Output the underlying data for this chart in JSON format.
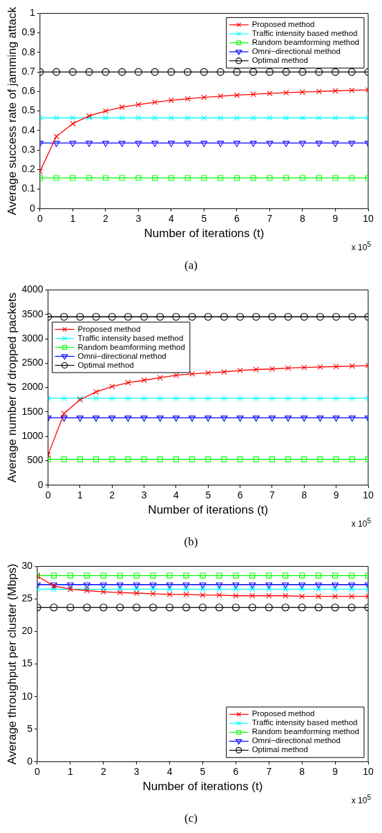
{
  "chart_data": [
    {
      "type": "line",
      "xlabel": "Number of iterations (t)",
      "ylabel": "Average success rate of jamming attack",
      "x": [
        0,
        0.5,
        1,
        1.5,
        2,
        2.5,
        3,
        3.5,
        4,
        4.5,
        5,
        5.5,
        6,
        6.5,
        7,
        7.5,
        8,
        8.5,
        9,
        9.5,
        10
      ],
      "xlim": [
        0,
        10
      ],
      "xticks": [
        0,
        1,
        2,
        3,
        4,
        5,
        6,
        7,
        8,
        9,
        10
      ],
      "ylim": [
        0,
        1
      ],
      "yticks": [
        0,
        0.1,
        0.2,
        0.3,
        0.4,
        0.5,
        0.6,
        0.7,
        0.8,
        0.9,
        1
      ],
      "grid": false,
      "legend": "top right",
      "annotations": [
        "x 10$^{5}$",
        "(a)"
      ],
      "series": [
        {
          "name": "Proposed method",
          "color": "#ff0000",
          "marker": "cross",
          "values": [
            0.19,
            0.37,
            0.435,
            0.475,
            0.5,
            0.52,
            0.533,
            0.545,
            0.555,
            0.563,
            0.57,
            0.576,
            0.581,
            0.586,
            0.59,
            0.594,
            0.597,
            0.6,
            0.603,
            0.606,
            0.608
          ]
        },
        {
          "name": "Traffic intensity based method",
          "color": "#00ffff",
          "marker": "cross",
          "values": [
            0.465,
            0.465,
            0.465,
            0.465,
            0.465,
            0.465,
            0.465,
            0.465,
            0.465,
            0.465,
            0.465,
            0.465,
            0.465,
            0.465,
            0.465,
            0.465,
            0.465,
            0.465,
            0.465,
            0.465,
            0.465
          ]
        },
        {
          "name": "Random beamforming method",
          "color": "#00ff00",
          "marker": "square",
          "values": [
            0.157,
            0.157,
            0.157,
            0.157,
            0.157,
            0.157,
            0.157,
            0.157,
            0.157,
            0.157,
            0.157,
            0.157,
            0.157,
            0.157,
            0.157,
            0.157,
            0.157,
            0.157,
            0.157,
            0.157,
            0.157
          ]
        },
        {
          "name": "Omni−directional method",
          "color": "#0000ff",
          "marker": "triangle",
          "values": [
            0.336,
            0.336,
            0.336,
            0.336,
            0.336,
            0.336,
            0.336,
            0.336,
            0.336,
            0.336,
            0.336,
            0.336,
            0.336,
            0.336,
            0.336,
            0.336,
            0.336,
            0.336,
            0.336,
            0.336,
            0.336
          ]
        },
        {
          "name": "Optimal method",
          "color": "#000000",
          "marker": "circle",
          "values": [
            0.7,
            0.7,
            0.7,
            0.7,
            0.7,
            0.7,
            0.7,
            0.7,
            0.7,
            0.7,
            0.7,
            0.7,
            0.7,
            0.7,
            0.7,
            0.7,
            0.7,
            0.7,
            0.7,
            0.7,
            0.7
          ]
        }
      ]
    },
    {
      "type": "line",
      "xlabel": "Number of iterations (t)",
      "ylabel": "Average number of dropped packets",
      "x": [
        0,
        0.5,
        1,
        1.5,
        2,
        2.5,
        3,
        3.5,
        4,
        4.5,
        5,
        5.5,
        6,
        6.5,
        7,
        7.5,
        8,
        8.5,
        9,
        9.5,
        10
      ],
      "xlim": [
        0,
        10
      ],
      "xticks": [
        0,
        1,
        2,
        3,
        4,
        5,
        6,
        7,
        8,
        9,
        10
      ],
      "ylim": [
        0,
        4000
      ],
      "yticks": [
        0,
        500,
        1000,
        1500,
        2000,
        2500,
        3000,
        3500,
        4000
      ],
      "grid": false,
      "legend": "top left",
      "annotations": [
        "x 10$^{5}$",
        "(b)"
      ],
      "series": [
        {
          "name": "Proposed method",
          "color": "#ff0000",
          "marker": "cross",
          "values": [
            620,
            1470,
            1750,
            1910,
            2020,
            2100,
            2150,
            2200,
            2250,
            2280,
            2300,
            2320,
            2350,
            2370,
            2380,
            2400,
            2410,
            2420,
            2430,
            2440,
            2450
          ]
        },
        {
          "name": "Traffic intensity based method",
          "color": "#00ffff",
          "marker": "cross",
          "values": [
            1780,
            1780,
            1780,
            1780,
            1780,
            1780,
            1780,
            1780,
            1780,
            1780,
            1780,
            1780,
            1780,
            1780,
            1780,
            1780,
            1780,
            1780,
            1780,
            1780,
            1780
          ]
        },
        {
          "name": "Random beamforming method",
          "color": "#00ff00",
          "marker": "square",
          "values": [
            530,
            530,
            530,
            530,
            530,
            530,
            530,
            530,
            530,
            530,
            530,
            530,
            530,
            530,
            530,
            530,
            530,
            530,
            530,
            530,
            530
          ]
        },
        {
          "name": "Omni−directional method",
          "color": "#0000ff",
          "marker": "triangle",
          "values": [
            1380,
            1380,
            1380,
            1380,
            1380,
            1380,
            1380,
            1380,
            1380,
            1380,
            1380,
            1380,
            1380,
            1380,
            1380,
            1380,
            1380,
            1380,
            1380,
            1380,
            1380
          ]
        },
        {
          "name": "Optimal method",
          "color": "#000000",
          "marker": "circle",
          "values": [
            3450,
            3450,
            3450,
            3450,
            3450,
            3450,
            3450,
            3450,
            3450,
            3450,
            3450,
            3450,
            3450,
            3450,
            3450,
            3450,
            3450,
            3450,
            3450,
            3450,
            3450
          ]
        }
      ]
    },
    {
      "type": "line",
      "xlabel": "Number of iterations (t)",
      "ylabel": "Average throughput per cluster (Mbps)",
      "x": [
        0,
        0.5,
        1,
        1.5,
        2,
        2.5,
        3,
        3.5,
        4,
        4.5,
        5,
        5.5,
        6,
        6.5,
        7,
        7.5,
        8,
        8.5,
        9,
        9.5,
        10
      ],
      "xlim": [
        0,
        10
      ],
      "xticks": [
        0,
        1,
        2,
        3,
        4,
        5,
        6,
        7,
        8,
        9,
        10
      ],
      "ylim": [
        0,
        30
      ],
      "yticks": [
        0,
        5,
        10,
        15,
        20,
        25,
        30
      ],
      "grid": false,
      "legend": "bottom right",
      "annotations": [
        "x 10$^{5}$",
        "(c)"
      ],
      "series": [
        {
          "name": "Proposed method",
          "color": "#ff0000",
          "marker": "cross",
          "values": [
            28.5,
            27.0,
            26.5,
            26.3,
            26.1,
            26.0,
            25.9,
            25.8,
            25.7,
            25.7,
            25.6,
            25.6,
            25.5,
            25.5,
            25.5,
            25.5,
            25.4,
            25.4,
            25.4,
            25.4,
            25.4
          ]
        },
        {
          "name": "Traffic intensity based method",
          "color": "#00ffff",
          "marker": "cross",
          "values": [
            26.5,
            26.5,
            26.5,
            26.5,
            26.5,
            26.5,
            26.5,
            26.5,
            26.5,
            26.5,
            26.5,
            26.5,
            26.5,
            26.5,
            26.5,
            26.5,
            26.5,
            26.5,
            26.5,
            26.5,
            26.5
          ]
        },
        {
          "name": "Random beamforming method",
          "color": "#00ff00",
          "marker": "square",
          "values": [
            28.6,
            28.6,
            28.6,
            28.6,
            28.6,
            28.6,
            28.6,
            28.6,
            28.6,
            28.6,
            28.6,
            28.6,
            28.6,
            28.6,
            28.6,
            28.6,
            28.6,
            28.6,
            28.6,
            28.6,
            28.6
          ]
        },
        {
          "name": "Omni−directional method",
          "color": "#0000ff",
          "marker": "triangle",
          "values": [
            27.2,
            27.2,
            27.2,
            27.2,
            27.2,
            27.2,
            27.2,
            27.2,
            27.2,
            27.2,
            27.2,
            27.2,
            27.2,
            27.2,
            27.2,
            27.2,
            27.2,
            27.2,
            27.2,
            27.2,
            27.2
          ]
        },
        {
          "name": "Optimal method",
          "color": "#000000",
          "marker": "circle",
          "values": [
            23.7,
            23.7,
            23.7,
            23.7,
            23.7,
            23.7,
            23.7,
            23.7,
            23.7,
            23.7,
            23.7,
            23.7,
            23.7,
            23.7,
            23.7,
            23.7,
            23.7,
            23.7,
            23.7,
            23.7,
            23.7
          ]
        }
      ]
    }
  ]
}
